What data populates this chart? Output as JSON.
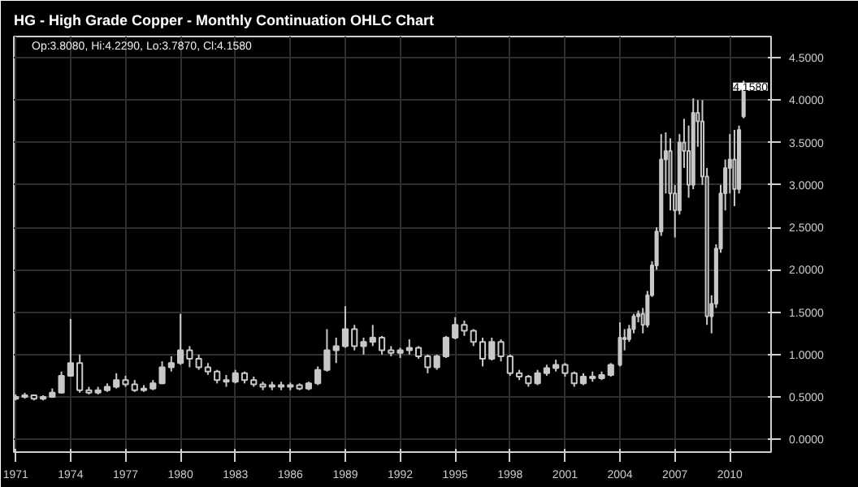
{
  "chart_data": {
    "type": "candlestick",
    "title": "HG - High Grade Copper - Monthly Continuation OHLC Chart",
    "annotations": [
      "Op:3.8080, Hi:4.2290, Lo:3.7870, Cl:4.1580",
      {
        "text": "4.1580",
        "y": 4.158
      }
    ],
    "color": "#c8c8c8",
    "grid": true,
    "x": [
      1971.0,
      1971.5,
      1972.0,
      1972.5,
      1973.0,
      1973.5,
      1974.0,
      1974.5,
      1975.0,
      1975.5,
      1976.0,
      1976.5,
      1977.0,
      1977.5,
      1978.0,
      1978.5,
      1979.0,
      1979.5,
      1980.0,
      1980.5,
      1981.0,
      1981.5,
      1982.0,
      1982.5,
      1983.0,
      1983.5,
      1984.0,
      1984.5,
      1985.0,
      1985.5,
      1986.0,
      1986.5,
      1987.0,
      1987.5,
      1988.0,
      1988.5,
      1989.0,
      1989.5,
      1990.0,
      1990.5,
      1991.0,
      1991.5,
      1992.0,
      1992.5,
      1993.0,
      1993.5,
      1994.0,
      1994.5,
      1995.0,
      1995.5,
      1996.0,
      1996.5,
      1997.0,
      1997.5,
      1998.0,
      1998.5,
      1999.0,
      1999.5,
      2000.0,
      2000.5,
      2001.0,
      2001.5,
      2002.0,
      2002.5,
      2003.0,
      2003.5,
      2004.0,
      2004.25,
      2004.5,
      2004.75,
      2005.0,
      2005.25,
      2005.5,
      2005.75,
      2006.0,
      2006.25,
      2006.5,
      2006.75,
      2007.0,
      2007.25,
      2007.5,
      2007.75,
      2008.0,
      2008.25,
      2008.5,
      2008.75,
      2009.0,
      2009.25,
      2009.5,
      2009.75,
      2010.0,
      2010.25,
      2010.5,
      2010.75
    ],
    "ohlc": [
      [
        0.48,
        0.53,
        0.46,
        0.5
      ],
      [
        0.5,
        0.55,
        0.48,
        0.52
      ],
      [
        0.52,
        0.53,
        0.46,
        0.48
      ],
      [
        0.48,
        0.52,
        0.46,
        0.5
      ],
      [
        0.5,
        0.6,
        0.49,
        0.55
      ],
      [
        0.55,
        0.8,
        0.54,
        0.75
      ],
      [
        0.75,
        1.42,
        0.74,
        0.9
      ],
      [
        0.9,
        1.0,
        0.55,
        0.58
      ],
      [
        0.58,
        0.62,
        0.53,
        0.55
      ],
      [
        0.55,
        0.62,
        0.53,
        0.58
      ],
      [
        0.58,
        0.66,
        0.56,
        0.62
      ],
      [
        0.62,
        0.78,
        0.6,
        0.7
      ],
      [
        0.7,
        0.75,
        0.62,
        0.65
      ],
      [
        0.65,
        0.7,
        0.56,
        0.58
      ],
      [
        0.58,
        0.64,
        0.56,
        0.6
      ],
      [
        0.6,
        0.7,
        0.58,
        0.66
      ],
      [
        0.66,
        0.92,
        0.65,
        0.85
      ],
      [
        0.85,
        0.98,
        0.8,
        0.9
      ],
      [
        0.9,
        1.48,
        0.88,
        1.05
      ],
      [
        1.05,
        1.1,
        0.85,
        0.95
      ],
      [
        0.95,
        1.0,
        0.82,
        0.85
      ],
      [
        0.85,
        0.9,
        0.76,
        0.8
      ],
      [
        0.8,
        0.82,
        0.66,
        0.7
      ],
      [
        0.7,
        0.76,
        0.62,
        0.68
      ],
      [
        0.68,
        0.82,
        0.66,
        0.78
      ],
      [
        0.78,
        0.8,
        0.66,
        0.7
      ],
      [
        0.7,
        0.74,
        0.62,
        0.65
      ],
      [
        0.65,
        0.68,
        0.58,
        0.62
      ],
      [
        0.62,
        0.68,
        0.58,
        0.64
      ],
      [
        0.64,
        0.68,
        0.58,
        0.62
      ],
      [
        0.62,
        0.67,
        0.58,
        0.64
      ],
      [
        0.64,
        0.66,
        0.58,
        0.6
      ],
      [
        0.6,
        0.68,
        0.58,
        0.66
      ],
      [
        0.66,
        0.86,
        0.64,
        0.82
      ],
      [
        0.82,
        1.3,
        0.8,
        1.05
      ],
      [
        1.05,
        1.2,
        0.9,
        1.1
      ],
      [
        1.1,
        1.57,
        1.08,
        1.3
      ],
      [
        1.3,
        1.35,
        1.05,
        1.1
      ],
      [
        1.1,
        1.2,
        1.0,
        1.15
      ],
      [
        1.15,
        1.35,
        1.1,
        1.2
      ],
      [
        1.2,
        1.22,
        1.0,
        1.05
      ],
      [
        1.05,
        1.1,
        0.98,
        1.02
      ],
      [
        1.02,
        1.08,
        0.96,
        1.05
      ],
      [
        1.05,
        1.18,
        1.0,
        1.08
      ],
      [
        1.08,
        1.1,
        0.95,
        0.98
      ],
      [
        0.98,
        1.0,
        0.78,
        0.85
      ],
      [
        0.85,
        1.0,
        0.82,
        0.98
      ],
      [
        0.98,
        1.22,
        0.96,
        1.2
      ],
      [
        1.2,
        1.44,
        1.18,
        1.35
      ],
      [
        1.35,
        1.4,
        1.22,
        1.28
      ],
      [
        1.28,
        1.3,
        1.1,
        1.15
      ],
      [
        1.15,
        1.2,
        0.86,
        0.95
      ],
      [
        0.95,
        1.2,
        0.93,
        1.15
      ],
      [
        1.15,
        1.18,
        0.92,
        0.98
      ],
      [
        0.98,
        1.0,
        0.75,
        0.78
      ],
      [
        0.78,
        0.82,
        0.7,
        0.74
      ],
      [
        0.74,
        0.76,
        0.62,
        0.66
      ],
      [
        0.66,
        0.82,
        0.64,
        0.78
      ],
      [
        0.78,
        0.88,
        0.75,
        0.84
      ],
      [
        0.84,
        0.94,
        0.8,
        0.88
      ],
      [
        0.88,
        0.9,
        0.74,
        0.78
      ],
      [
        0.78,
        0.8,
        0.62,
        0.66
      ],
      [
        0.66,
        0.78,
        0.64,
        0.74
      ],
      [
        0.74,
        0.8,
        0.68,
        0.72
      ],
      [
        0.72,
        0.8,
        0.7,
        0.76
      ],
      [
        0.76,
        0.9,
        0.74,
        0.88
      ],
      [
        0.88,
        1.38,
        0.86,
        1.2
      ],
      [
        1.2,
        1.3,
        1.05,
        1.18
      ],
      [
        1.18,
        1.35,
        1.15,
        1.3
      ],
      [
        1.3,
        1.48,
        1.25,
        1.45
      ],
      [
        1.45,
        1.52,
        1.38,
        1.48
      ],
      [
        1.48,
        1.55,
        1.25,
        1.35
      ],
      [
        1.35,
        1.75,
        1.32,
        1.7
      ],
      [
        1.7,
        2.1,
        1.68,
        2.05
      ],
      [
        2.05,
        2.5,
        2.0,
        2.45
      ],
      [
        2.45,
        3.6,
        2.4,
        3.3
      ],
      [
        3.3,
        3.62,
        2.9,
        3.4
      ],
      [
        3.4,
        3.55,
        2.7,
        2.9
      ],
      [
        2.9,
        3.0,
        2.38,
        2.7
      ],
      [
        2.7,
        3.6,
        2.65,
        3.5
      ],
      [
        3.5,
        3.78,
        3.2,
        3.4
      ],
      [
        3.4,
        3.7,
        2.85,
        3.0
      ],
      [
        3.0,
        4.02,
        2.95,
        3.85
      ],
      [
        3.85,
        4.0,
        3.45,
        3.75
      ],
      [
        3.75,
        4.0,
        3.0,
        3.1
      ],
      [
        3.1,
        3.2,
        1.35,
        1.45
      ],
      [
        1.45,
        1.7,
        1.25,
        1.6
      ],
      [
        1.6,
        2.3,
        1.55,
        2.25
      ],
      [
        2.25,
        3.0,
        2.2,
        2.9
      ],
      [
        2.9,
        3.3,
        2.7,
        3.2
      ],
      [
        3.2,
        3.6,
        2.9,
        3.3
      ],
      [
        3.3,
        3.65,
        2.75,
        2.95
      ],
      [
        2.95,
        3.7,
        2.9,
        3.65
      ],
      [
        3.808,
        4.229,
        3.787,
        4.158
      ]
    ],
    "xlim": [
      1970.9,
      2012.25
    ],
    "xticks": [
      1971,
      1974,
      1977,
      1980,
      1983,
      1986,
      1989,
      1992,
      1995,
      1998,
      2001,
      2004,
      2007,
      2010
    ],
    "ylim": [
      -0.15,
      4.75
    ],
    "yticks": [
      {
        "value": 0,
        "label": "0.0000"
      },
      {
        "value": 0.5,
        "label": "0.5000"
      },
      {
        "value": 1,
        "label": "1.0000"
      },
      {
        "value": 1.5,
        "label": "1.5000"
      },
      {
        "value": 2,
        "label": "2.0000"
      },
      {
        "value": 2.5,
        "label": "2.5000"
      },
      {
        "value": 3,
        "label": "3.0000"
      },
      {
        "value": 3.5,
        "label": "3.5000"
      },
      {
        "value": 4,
        "label": "4.0000"
      },
      {
        "value": 4.5,
        "label": "4.5000"
      }
    ]
  }
}
